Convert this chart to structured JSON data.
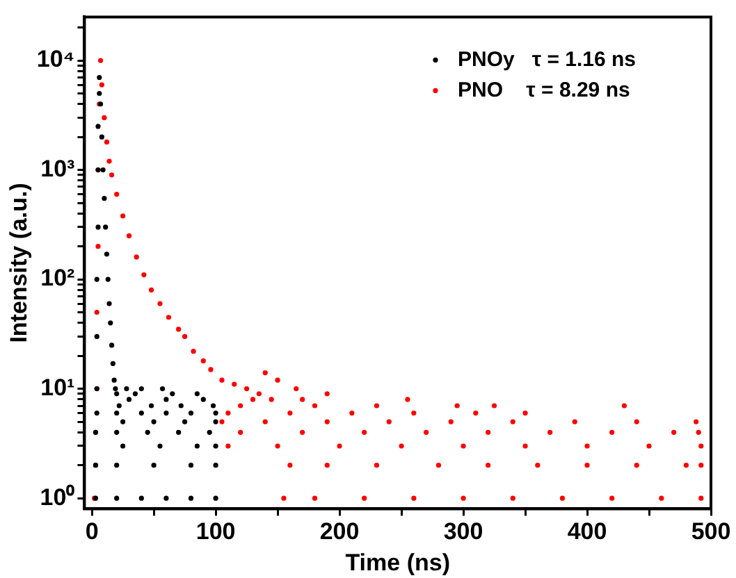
{
  "chart_data": {
    "type": "scatter",
    "xlabel": "Time (ns)",
    "ylabel": "Intensity (a.u.)",
    "log": "y",
    "marker": "circle",
    "legend": "top right",
    "grid": false,
    "xlim": [
      -6,
      500
    ],
    "xticks": [
      0,
      {
        "value": 50,
        "label": null
      },
      100,
      {
        "value": 150,
        "label": null
      },
      200,
      {
        "value": 250,
        "label": null
      },
      300,
      {
        "value": 350,
        "label": null
      },
      400,
      {
        "value": 450,
        "label": null
      },
      500
    ],
    "ylim": [
      0.8,
      25000
    ],
    "yticks": [
      {
        "value": 1,
        "label": "10⁰"
      },
      {
        "value": 2,
        "label": null
      },
      {
        "value": 3,
        "label": null
      },
      {
        "value": 4,
        "label": null
      },
      {
        "value": 5,
        "label": null
      },
      {
        "value": 6,
        "label": null
      },
      {
        "value": 7,
        "label": null
      },
      {
        "value": 8,
        "label": null
      },
      {
        "value": 9,
        "label": null
      },
      {
        "value": 10,
        "label": "10¹"
      },
      {
        "value": 20,
        "label": null
      },
      {
        "value": 30,
        "label": null
      },
      {
        "value": 40,
        "label": null
      },
      {
        "value": 50,
        "label": null
      },
      {
        "value": 60,
        "label": null
      },
      {
        "value": 70,
        "label": null
      },
      {
        "value": 80,
        "label": null
      },
      {
        "value": 90,
        "label": null
      },
      {
        "value": 100,
        "label": "10²"
      },
      {
        "value": 200,
        "label": null
      },
      {
        "value": 300,
        "label": null
      },
      {
        "value": 400,
        "label": null
      },
      {
        "value": 500,
        "label": null
      },
      {
        "value": 600,
        "label": null
      },
      {
        "value": 700,
        "label": null
      },
      {
        "value": 800,
        "label": null
      },
      {
        "value": 900,
        "label": null
      },
      {
        "value": 1000,
        "label": "10³"
      },
      {
        "value": 2000,
        "label": null
      },
      {
        "value": 3000,
        "label": null
      },
      {
        "value": 4000,
        "label": null
      },
      {
        "value": 5000,
        "label": null
      },
      {
        "value": 6000,
        "label": null
      },
      {
        "value": 7000,
        "label": null
      },
      {
        "value": 8000,
        "label": null
      },
      {
        "value": 9000,
        "label": null
      },
      {
        "value": 10000,
        "label": "10⁴"
      },
      {
        "value": 20000,
        "label": null
      }
    ],
    "series": [
      {
        "name": "PNOy   τ = 1.16 ns",
        "color": "#000000",
        "x": [
          3,
          3,
          3,
          4,
          4,
          4,
          4,
          5,
          5,
          5,
          6,
          6,
          7,
          8,
          9,
          10,
          11,
          12,
          13,
          14,
          15,
          16,
          17,
          18,
          19,
          20,
          20,
          40,
          60,
          80,
          100,
          20,
          50,
          80,
          100,
          25,
          55,
          85,
          100,
          20,
          45,
          70,
          95,
          25,
          50,
          75,
          100,
          20,
          40,
          60,
          80,
          100,
          22,
          48,
          72,
          98,
          30,
          60,
          90,
          35,
          65,
          85,
          28,
          40,
          57
        ],
        "values": [
          1,
          2,
          4,
          6,
          10,
          30,
          100,
          300,
          1000,
          2500,
          5000,
          7000,
          4000,
          2000,
          1000,
          550,
          300,
          170,
          100,
          60,
          40,
          25,
          17,
          12,
          10,
          9,
          1,
          1,
          1,
          1,
          1,
          2,
          2,
          2,
          2,
          3,
          3,
          3,
          3,
          4,
          4,
          4,
          4,
          5,
          5,
          5,
          5,
          6,
          6,
          6,
          6,
          6,
          7,
          7,
          7,
          7,
          8,
          8,
          8,
          9,
          9,
          9,
          10,
          10,
          10
        ]
      },
      {
        "name": "PNO    τ = 8.29 ns",
        "color": "#ff0000",
        "x": [
          2,
          3,
          3,
          4,
          4,
          5,
          5,
          6,
          7,
          8,
          10,
          12,
          14,
          16,
          20,
          25,
          30,
          36,
          42,
          48,
          55,
          62,
          70,
          75,
          82,
          90,
          96,
          105,
          115,
          125,
          135,
          145,
          150,
          140,
          165,
          190,
          155,
          180,
          220,
          260,
          300,
          340,
          380,
          420,
          460,
          492,
          160,
          190,
          230,
          280,
          320,
          360,
          400,
          440,
          480,
          492,
          110,
          150,
          200,
          250,
          300,
          350,
          400,
          450,
          492,
          120,
          170,
          220,
          270,
          320,
          370,
          420,
          470,
          490,
          105,
          140,
          190,
          240,
          290,
          340,
          390,
          440,
          488,
          110,
          160,
          210,
          260,
          310,
          350,
          120,
          180,
          230,
          295,
          325,
          430,
          130,
          170,
          255
        ],
        "values": [
          1,
          2,
          4,
          10,
          50,
          200,
          1000,
          4000,
          10000,
          6000,
          3000,
          1800,
          1200,
          900,
          600,
          380,
          250,
          160,
          110,
          80,
          60,
          45,
          35,
          30,
          22,
          18,
          15,
          12,
          11,
          10,
          9,
          8,
          12,
          14,
          10,
          9,
          1,
          1,
          1,
          1,
          1,
          1,
          1,
          1,
          1,
          1,
          2,
          2,
          2,
          2,
          2,
          2,
          2,
          2,
          2,
          2,
          3,
          3,
          3,
          3,
          3,
          3,
          3,
          3,
          3,
          4,
          4,
          4,
          4,
          4,
          4,
          4,
          4,
          4,
          5,
          5,
          5,
          5,
          5,
          5,
          5,
          5,
          5,
          6,
          6,
          6,
          6,
          6,
          6,
          7,
          7,
          7,
          7,
          7,
          7,
          8,
          8,
          8
        ]
      }
    ]
  }
}
